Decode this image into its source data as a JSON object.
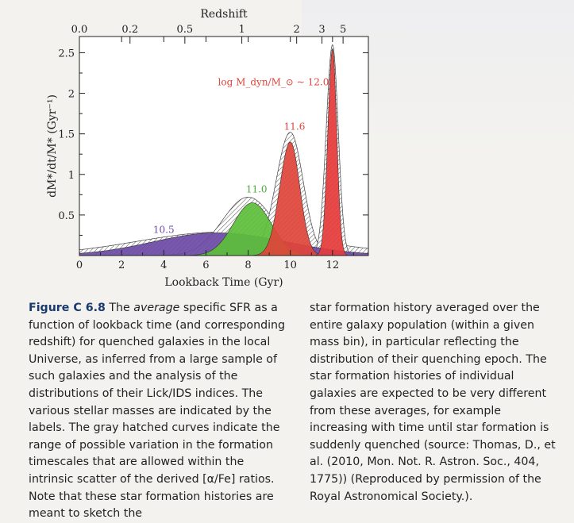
{
  "chart_data": {
    "type": "area",
    "xlabel": "Lookback Time (Gyr)",
    "ylabel": "dM*/dt/M* (Gyr⁻¹)",
    "top_axis_label": "Redshift",
    "xlim": [
      0,
      13.7
    ],
    "ylim": [
      0,
      2.7
    ],
    "x_ticks": [
      0,
      2,
      4,
      6,
      8,
      10,
      12
    ],
    "y_ticks": [
      0.5,
      1,
      1.5,
      2,
      2.5
    ],
    "redshift_ticks": [
      "0.0",
      "0.2",
      "0.5",
      "1",
      "2",
      "3",
      "5"
    ],
    "redshift_positions_gyr": [
      0.0,
      2.4,
      5.0,
      7.7,
      10.3,
      11.5,
      12.5
    ],
    "mass_note": "log M_dyn/M_⊙ ~ 12.0",
    "series": [
      {
        "name": "10.5",
        "color": "#6b4aa6",
        "peak_x": 6.5,
        "peak_y": 0.28,
        "width_left": 3.0,
        "width_right": 3.3,
        "hatch_peak_x": 6.8,
        "hatch_peak_y": 0.29
      },
      {
        "name": "11.0",
        "color": "#5cbf3a",
        "peak_x": 8.2,
        "peak_y": 0.65,
        "width_left": 0.9,
        "width_right": 0.9,
        "hatch_peak_x": 8.0,
        "hatch_peak_y": 0.72
      },
      {
        "name": "11.6",
        "color": "#e0443a",
        "peak_x": 10.0,
        "peak_y": 1.4,
        "width_left": 0.5,
        "width_right": 0.45,
        "hatch_peak_x": 10.0,
        "hatch_peak_y": 1.52
      },
      {
        "name": "12.0",
        "color": "#e63b3b",
        "peak_x": 12.0,
        "peak_y": 2.55,
        "width_left": 0.22,
        "width_right": 0.2,
        "hatch_peak_x": 12.0,
        "hatch_peak_y": 2.6
      }
    ],
    "labels": [
      {
        "text": "10.5",
        "x": 4.0,
        "y": 0.28,
        "color": "#6b4aa6"
      },
      {
        "text": "11.0",
        "x": 8.4,
        "y": 0.78,
        "color": "#4ca83a"
      },
      {
        "text": "11.6",
        "x": 10.2,
        "y": 1.55,
        "color": "#e0443a"
      },
      {
        "text": "log M_dyn/M_⊙ ~ 12.0",
        "x": 9.2,
        "y": 2.1,
        "color": "#e0443a"
      }
    ]
  },
  "caption": {
    "label": "Figure C 6.8",
    "left_text": "The average specific SFR as a function of lookback time (and corresponding redshift) for quenched galaxies in the local Universe, as inferred from a large sample of such galaxies and the analysis of the distributions of their Lick/IDS indices. The various stellar masses are indicated by the labels. The gray hatched curves indicate the range of possible variation in the formation timescales that are allowed within the intrinsic scatter of the derived [α/Fe] ratios. Note that these star formation histories are meant to sketch the",
    "right_text": "star formation history averaged over the entire galaxy population (within a given mass bin), in particular reflecting the distribution of their quenching epoch. The star formation histories of individual galaxies are expected to be very different from these averages, for example increasing with time until star formation is suddenly quenched (source: Thomas, D., et al. (2010, Mon. Not. R. Astron. Soc., 404, 1775)) (Reproduced by permission of the Royal Astronomical Society.)."
  }
}
